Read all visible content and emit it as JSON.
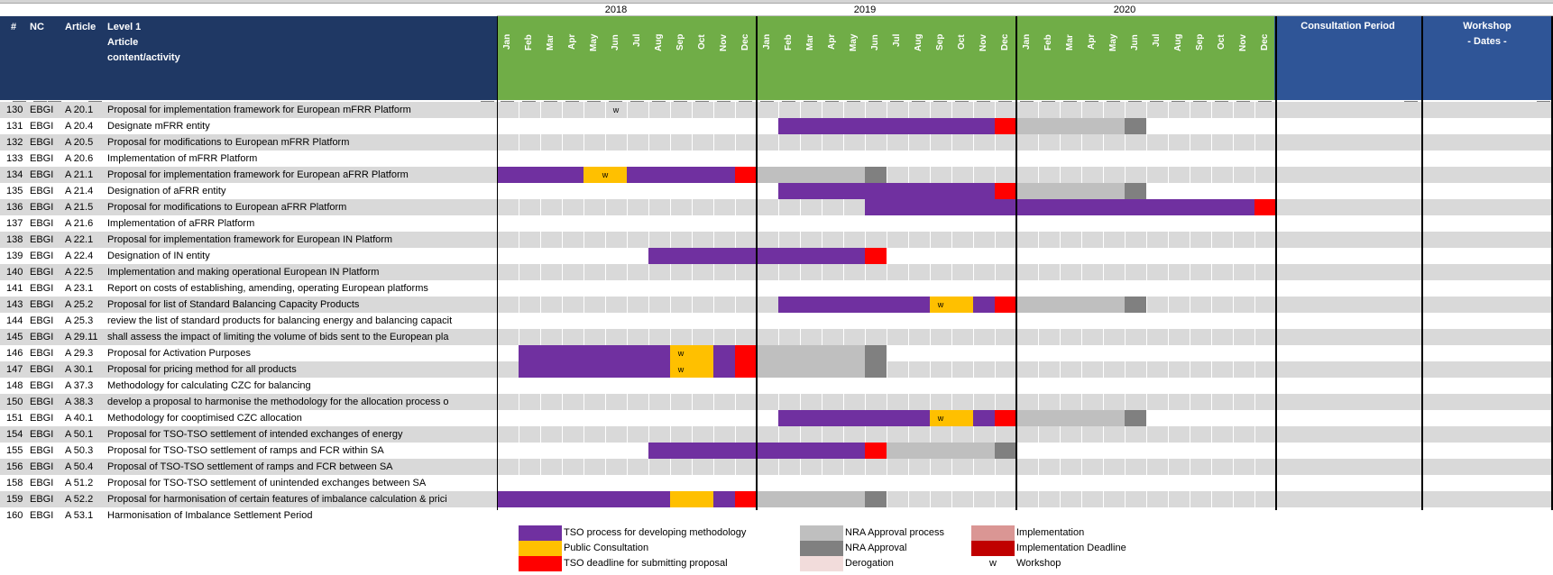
{
  "header": {
    "col_num": "#",
    "col_nc": "NC",
    "col_article": "Article",
    "col_level1": "Level 1",
    "col_level1_line2": "Article",
    "col_level1_line3": "content/activity",
    "consultation": "Consultation Period",
    "workshop": "Workshop",
    "workshop_sub": "- Dates -"
  },
  "years": [
    "2018",
    "2019",
    "2020"
  ],
  "months": [
    "Jan",
    "Feb",
    "Mar",
    "Apr",
    "May",
    "Jun",
    "Jul",
    "Aug",
    "Sep",
    "Oct",
    "Nov",
    "Dec"
  ],
  "colors": {
    "tso": "#7030a0",
    "consult": "#ffc000",
    "deadline": "#ff0000",
    "nra_process": "#bfbfbf",
    "nra_approval": "#808080",
    "implementation": "#da9694",
    "impl_deadline": "#c00000",
    "derogation": "#f2dcdb"
  },
  "rows": [
    {
      "num": "130",
      "nc": "EBGI",
      "art": "A 20.1",
      "text": "Proposal for implementation framework for European mFRR Platform"
    },
    {
      "num": "131",
      "nc": "EBGI",
      "art": "A 20.4",
      "text": "Designate mFRR entity"
    },
    {
      "num": "132",
      "nc": "EBGI",
      "art": "A 20.5",
      "text": "Proposal for modifications to European mFRR Platform"
    },
    {
      "num": "133",
      "nc": "EBGI",
      "art": "A 20.6",
      "text": "Implementation of mFRR Platform"
    },
    {
      "num": "134",
      "nc": "EBGI",
      "art": "A 21.1",
      "text": "Proposal for implementation framework for European aFRR Platform"
    },
    {
      "num": "135",
      "nc": "EBGI",
      "art": "A 21.4",
      "text": "Designation of aFRR entity"
    },
    {
      "num": "136",
      "nc": "EBGI",
      "art": "A 21.5",
      "text": "Proposal for modifications to European aFRR Platform"
    },
    {
      "num": "137",
      "nc": "EBGI",
      "art": "A 21.6",
      "text": "Implementation of aFRR Platform"
    },
    {
      "num": "138",
      "nc": "EBGI",
      "art": "A 22.1",
      "text": "Proposal for implementation framework for European IN Platform"
    },
    {
      "num": "139",
      "nc": "EBGI",
      "art": "A 22.4",
      "text": "Designation of IN entity"
    },
    {
      "num": "140",
      "nc": "EBGI",
      "art": "A 22.5",
      "text": "Implementation and making operational European IN Platform"
    },
    {
      "num": "141",
      "nc": "EBGI",
      "art": "A 23.1",
      "text": "Report on costs of establishing, amending, operating European platforms"
    },
    {
      "num": "143",
      "nc": "EBGI",
      "art": "A 25.2",
      "text": "Proposal for list of Standard Balancing Capacity Products"
    },
    {
      "num": "144",
      "nc": "EBGI",
      "art": "A 25.3",
      "text": "review the list of standard products for balancing energy and balancing capacit"
    },
    {
      "num": "145",
      "nc": "EBGI",
      "art": "A 29.11",
      "text": "shall assess the impact of limiting the volume of bids sent to the European pla"
    },
    {
      "num": "146",
      "nc": "EBGI",
      "art": "A 29.3",
      "text": "Proposal for Activation Purposes"
    },
    {
      "num": "147",
      "nc": "EBGI",
      "art": "A 30.1",
      "text": "Proposal for pricing method for all products"
    },
    {
      "num": "148",
      "nc": "EBGI",
      "art": "A 37.3",
      "text": "Methodology for calculating CZC for balancing"
    },
    {
      "num": "150",
      "nc": "EBGI",
      "art": "A 38.3",
      "text": "develop a proposal to harmonise the methodology for the allocation process o"
    },
    {
      "num": "151",
      "nc": "EBGI",
      "art": "A 40.1",
      "text": "Methodology for cooptimised CZC allocation"
    },
    {
      "num": "154",
      "nc": "EBGI",
      "art": "A 50.1",
      "text": "Proposal for TSO-TSO settlement of intended exchanges of energy"
    },
    {
      "num": "155",
      "nc": "EBGI",
      "art": "A 50.3",
      "text": "Proposal for TSO-TSO settlement of ramps and FCR within SA"
    },
    {
      "num": "156",
      "nc": "EBGI",
      "art": "A 50.4",
      "text": "Proposal of TSO-TSO settlement of ramps and FCR between SA"
    },
    {
      "num": "158",
      "nc": "EBGI",
      "art": "A 51.2",
      "text": "Proposal for TSO-TSO settlement of unintended exchanges between SA"
    },
    {
      "num": "159",
      "nc": "EBGI",
      "art": "A 52.2",
      "text": "Proposal for harmonisation of certain features of imbalance calculation & prici"
    },
    {
      "num": "160",
      "nc": "EBGI",
      "art": "A 53.1",
      "text": "Harmonisation of Imbalance Settlement Period"
    }
  ],
  "gantt": [
    {
      "row": 0,
      "bars": [],
      "w": [
        5.5
      ]
    },
    {
      "row": 1,
      "bars": [
        [
          13,
          10,
          "tso"
        ],
        [
          23,
          1,
          "deadline"
        ],
        [
          24,
          5,
          "nra_process"
        ],
        [
          29,
          1,
          "nra_approval"
        ]
      ],
      "w": []
    },
    {
      "row": 4,
      "bars": [
        [
          0,
          4,
          "tso"
        ],
        [
          4,
          2,
          "consult"
        ],
        [
          6,
          5,
          "tso"
        ],
        [
          11,
          1,
          "deadline"
        ],
        [
          12,
          5,
          "nra_process"
        ],
        [
          17,
          1,
          "nra_approval"
        ]
      ],
      "w": [
        5
      ]
    },
    {
      "row": 5,
      "bars": [
        [
          13,
          10,
          "tso"
        ],
        [
          23,
          1,
          "deadline"
        ],
        [
          24,
          5,
          "nra_process"
        ],
        [
          29,
          1,
          "nra_approval"
        ]
      ],
      "w": []
    },
    {
      "row": 6,
      "bars": [
        [
          17,
          18,
          "tso"
        ],
        [
          35,
          1,
          "deadline"
        ]
      ],
      "w": []
    },
    {
      "row": 9,
      "bars": [
        [
          7,
          10,
          "tso"
        ],
        [
          17,
          1,
          "deadline"
        ]
      ],
      "w": []
    },
    {
      "row": 12,
      "bars": [
        [
          13,
          7,
          "tso"
        ],
        [
          20,
          2,
          "consult"
        ],
        [
          22,
          1,
          "tso"
        ],
        [
          23,
          1,
          "deadline"
        ],
        [
          24,
          5,
          "nra_process"
        ],
        [
          29,
          1,
          "nra_approval"
        ]
      ],
      "w": [
        20.5
      ]
    },
    {
      "row": 15,
      "bars": [
        [
          1,
          7,
          "tso"
        ],
        [
          8,
          2,
          "consult"
        ],
        [
          10,
          1,
          "tso"
        ],
        [
          11,
          1,
          "deadline"
        ],
        [
          12,
          5,
          "nra_process"
        ],
        [
          17,
          1,
          "nra_approval"
        ]
      ],
      "w": [
        8.5
      ],
      "span2": true
    },
    {
      "row": 16,
      "bars": [],
      "w": [
        8.5
      ]
    },
    {
      "row": 19,
      "bars": [
        [
          13,
          7,
          "tso"
        ],
        [
          20,
          2,
          "consult"
        ],
        [
          22,
          1,
          "tso"
        ],
        [
          23,
          1,
          "deadline"
        ],
        [
          24,
          5,
          "nra_process"
        ],
        [
          29,
          1,
          "nra_approval"
        ]
      ],
      "w": [
        20.5
      ]
    },
    {
      "row": 21,
      "bars": [
        [
          7,
          10,
          "tso"
        ],
        [
          17,
          1,
          "deadline"
        ],
        [
          18,
          5,
          "nra_process"
        ],
        [
          23,
          1,
          "nra_approval"
        ]
      ],
      "w": []
    },
    {
      "row": 24,
      "bars": [
        [
          0,
          8,
          "tso"
        ],
        [
          8,
          2,
          "consult"
        ],
        [
          10,
          1,
          "tso"
        ],
        [
          11,
          1,
          "deadline"
        ],
        [
          12,
          5,
          "nra_process"
        ],
        [
          17,
          1,
          "nra_approval"
        ]
      ],
      "w": []
    }
  ],
  "workshop_mark": "w",
  "legend": [
    {
      "key": "tso",
      "label": "TSO process for developing methodology"
    },
    {
      "key": "consult",
      "label": "Public Consultation"
    },
    {
      "key": "deadline",
      "label": "TSO deadline for submitting proposal"
    },
    {
      "key": "nra_process",
      "label": "NRA Approval process"
    },
    {
      "key": "nra_approval",
      "label": "NRA Approval"
    },
    {
      "key": "derogation",
      "label": "Derogation"
    },
    {
      "key": "implementation",
      "label": "Implementation"
    },
    {
      "key": "impl_deadline",
      "label": "Implementation Deadline"
    },
    {
      "key": "workshop",
      "label": "Workshop",
      "mark": "w"
    }
  ]
}
